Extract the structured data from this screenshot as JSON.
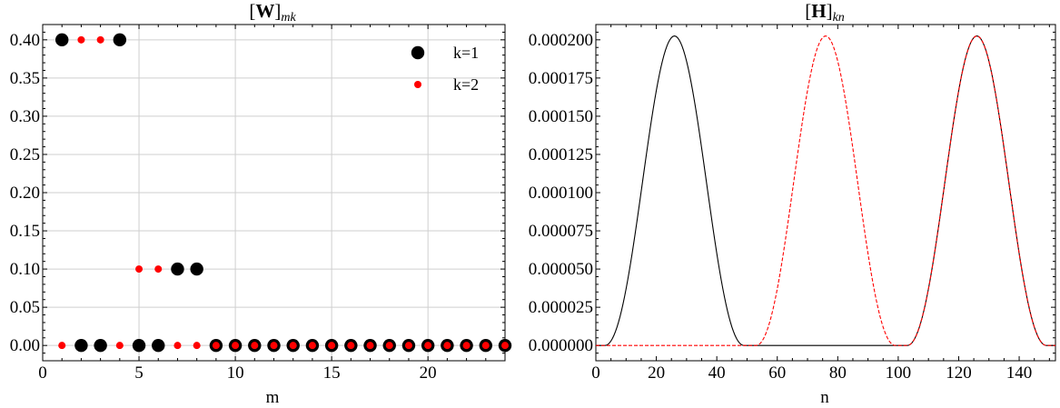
{
  "chart_data": [
    {
      "type": "scatter",
      "title": {
        "left_bracket": "[",
        "bold": "W",
        "right_bracket": "]",
        "subscript": "mk"
      },
      "xlabel": "m",
      "ylabel": "",
      "xlim": [
        0,
        24
      ],
      "ylim": [
        -0.02,
        0.42
      ],
      "xticks": [
        "0",
        "5",
        "10",
        "15",
        "20"
      ],
      "yticks": [
        "0.00",
        "0.05",
        "0.10",
        "0.15",
        "0.20",
        "0.25",
        "0.30",
        "0.35",
        "0.40"
      ],
      "grid": true,
      "legend_position": "top-right",
      "series": [
        {
          "name": "k=1",
          "color": "#000000",
          "x": [
            1,
            2,
            3,
            4,
            5,
            6,
            7,
            8,
            9,
            10,
            11,
            12,
            13,
            14,
            15,
            16,
            17,
            18,
            19,
            20,
            21,
            22,
            23,
            24
          ],
          "y": [
            0.4,
            0,
            0,
            0.4,
            0,
            0,
            0.1,
            0.1,
            0,
            0,
            0,
            0,
            0,
            0,
            0,
            0,
            0,
            0,
            0,
            0,
            0,
            0,
            0,
            0
          ]
        },
        {
          "name": "k=2",
          "color": "#ff0000",
          "x": [
            1,
            2,
            3,
            4,
            5,
            6,
            7,
            8,
            9,
            10,
            11,
            12,
            13,
            14,
            15,
            16,
            17,
            18,
            19,
            20,
            21,
            22,
            23,
            24
          ],
          "y": [
            0,
            0.4,
            0.4,
            0,
            0.1,
            0.1,
            0,
            0,
            0,
            0,
            0,
            0,
            0,
            0,
            0,
            0,
            0,
            0,
            0,
            0,
            0,
            0,
            0,
            0
          ]
        }
      ]
    },
    {
      "type": "line",
      "title": {
        "left_bracket": "[",
        "bold": "H",
        "right_bracket": "]",
        "subscript": "kn"
      },
      "xlabel": "n",
      "ylabel": "",
      "xlim": [
        0,
        152
      ],
      "ylim": [
        -1e-05,
        0.00021
      ],
      "xticks": [
        "0",
        "20",
        "40",
        "60",
        "80",
        "100",
        "120",
        "140"
      ],
      "yticks": [
        "0.000000",
        "0.000025",
        "0.000050",
        "0.000075",
        "0.000100",
        "0.000125",
        "0.000150",
        "0.000175",
        "0.000200"
      ],
      "grid": false,
      "series": [
        {
          "name": "k=1",
          "color": "#000000",
          "style": "solid",
          "bumps": [
            {
              "start": 3,
              "end": 49,
              "peak": 0.0002025
            },
            {
              "start": 103,
              "end": 149,
              "peak": 0.0002025
            }
          ]
        },
        {
          "name": "k=2",
          "color": "#ff0000",
          "style": "dashed",
          "bumps": [
            {
              "start": 53,
              "end": 99,
              "peak": 0.0002025
            },
            {
              "start": 103,
              "end": 149,
              "peak": 0.0002025
            }
          ]
        }
      ]
    }
  ]
}
